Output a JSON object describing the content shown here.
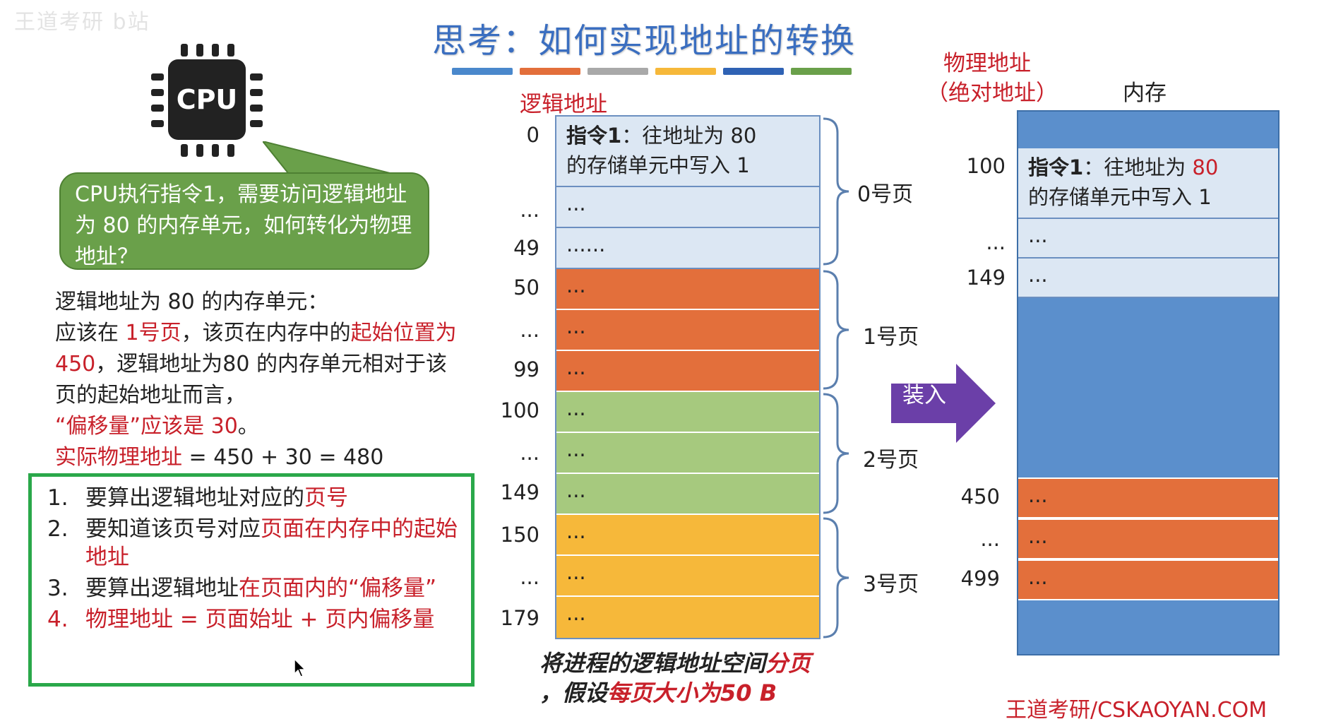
{
  "watermark": "王道考研 b站",
  "title": "思考：如何实现地址的转换",
  "color_bar": [
    "#4a88cc",
    "#e36f3b",
    "#a9a9a9",
    "#f6b83a",
    "#2f62b4",
    "#6aa04a"
  ],
  "cpu": {
    "label": "CPU"
  },
  "bubble": {
    "text": "CPU执行指令1，需要访问逻辑地址为 80 的内存单元，如何转化为物理地址？"
  },
  "explanation": {
    "l1": "逻辑地址为 80 的内存单元：",
    "l2a": "应该在 ",
    "l2b": "1号页",
    "l2c": "，该页在内存中的",
    "l2d": "起始位置为 450",
    "l2e": "，逻辑地址为80 的内存单元相对于该页的起始地址而言，",
    "l3": "“偏移量”应该是 30",
    "l3end": "。",
    "l4a": "实际物理地址",
    "l4b": " = 450 + 30 = 480"
  },
  "steps": [
    {
      "num": "1.",
      "a": "要算出逻辑地址对应的",
      "b": "页号"
    },
    {
      "num": "2.",
      "a": "要知道该页号对应",
      "b": "页面在内存中的起始地址"
    },
    {
      "num": "3.",
      "a": "要算出逻辑地址",
      "b": "在页面内的“偏移量”"
    },
    {
      "num": "4.",
      "a": "",
      "b": "物理地址 = 页面始址 + 页内偏移量"
    }
  ],
  "logical": {
    "title": "逻辑地址",
    "first_cell": "指令1：往地址为 80 的存储单元中写入 1",
    "first_cell_bold": "指令1",
    "first_cell_rest": "：往地址为 80",
    "first_cell_line2": "的存储单元中写入 1",
    "row_labels": [
      "0",
      "...",
      "49",
      "50",
      "...",
      "99",
      "100",
      "...",
      "149",
      "150",
      "...",
      "179"
    ],
    "cells": [
      "...",
      "......",
      "...",
      "...",
      "...",
      "...",
      "...",
      "...",
      "...",
      "...",
      "..."
    ],
    "pages": [
      "0号页",
      "1号页",
      "2号页",
      "3号页"
    ]
  },
  "caption": {
    "a": "将进程的逻辑地址空间",
    "b": "分页",
    "c": "，假设",
    "d": "每页大小为50 B"
  },
  "arrow_label": "装入",
  "physical": {
    "title_line1": "物理地址",
    "title_line2": "（绝对地址）",
    "mem_title": "内存",
    "instr_bold": "指令1",
    "instr_rest": "：往地址为 ",
    "instr_addr": "80",
    "instr_line2": "的存储单元中写入 1",
    "row_labels": [
      "100",
      "...",
      "149",
      "450",
      "...",
      "499"
    ],
    "cells": [
      "...",
      "...",
      "...",
      "...",
      "..."
    ]
  },
  "footer": "王道考研/CSKAOYAN.COM"
}
